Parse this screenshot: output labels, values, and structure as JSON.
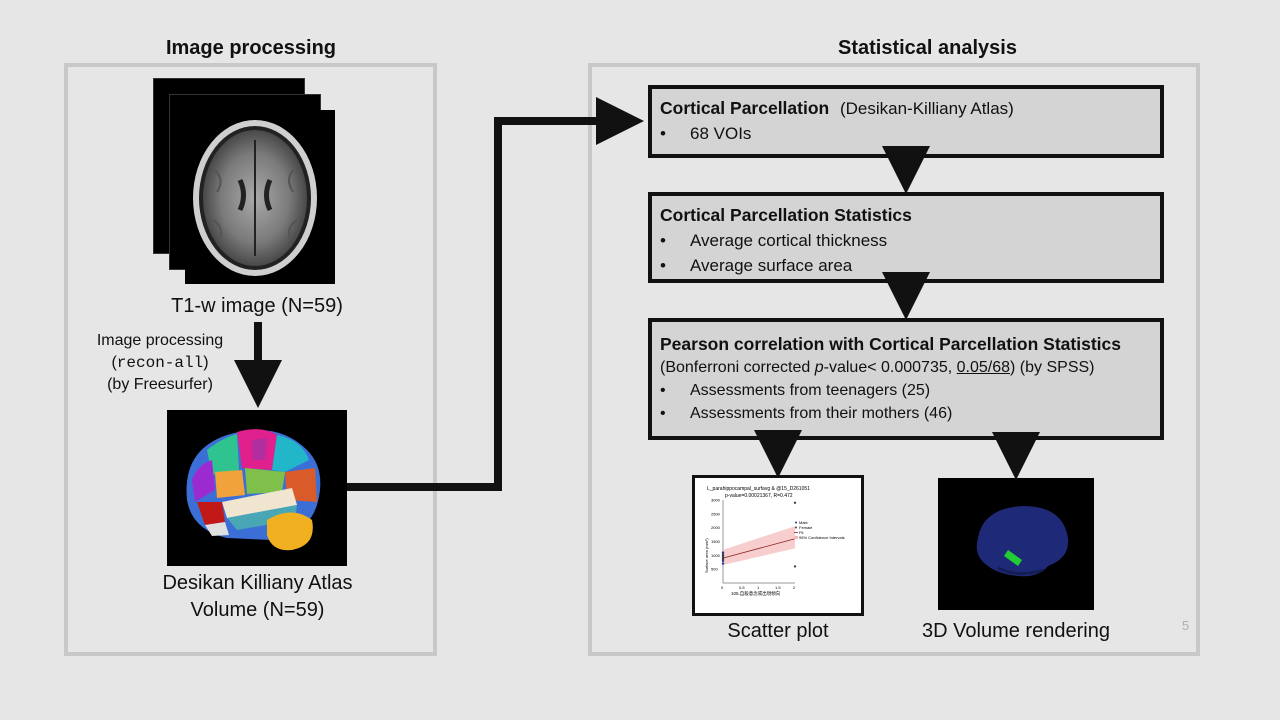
{
  "left_panel": {
    "title": "Image processing",
    "t1_caption": "T1-w image (N=59)",
    "step_line1": "Image processing",
    "step_cmd": "recon-all",
    "step_line3": "(by Freesurfer)",
    "atlas_caption_line1": "Desikan Killiany Atlas",
    "atlas_caption_line2": "Volume (N=59)"
  },
  "right_panel": {
    "title": "Statistical analysis",
    "box1": {
      "head": "Cortical Parcellation",
      "head_suffix": "(Desikan-Killiany Atlas)",
      "items": [
        "68 VOIs"
      ]
    },
    "box2": {
      "head": "Cortical Parcellation Statistics",
      "items": [
        "Average cortical thickness",
        "Average surface area"
      ]
    },
    "box3": {
      "head": "Pearson correlation with Cortical Parcellation Statistics",
      "sub_prefix": "(Bonferroni corrected ",
      "sub_p": "p",
      "sub_mid": "-value< 0.000735, ",
      "sub_frac": "0.05/68",
      "sub_suffix": ") (by SPSS)",
      "items": [
        "Assessments from teenagers (25)",
        "Assessments from their mothers (46)"
      ]
    },
    "scatter_caption": "Scatter plot",
    "render_caption": "3D Volume rendering"
  },
  "page_number": "5",
  "scatter_plot": {
    "title": "L_parahippocampal_surfavg & @15_D261051",
    "subtitle": "p-value=0.00021367, R=0.472",
    "ylabel": "Surface area (mm²)",
    "xlabel": "105.自殺意念或出現傾向",
    "legend": [
      "Male",
      "Female",
      "Fit",
      "95% Confidence Intervals"
    ]
  },
  "chart_data": {
    "type": "scatter",
    "title": "L_parahippocampal_surfavg & @15_D261051",
    "subtitle": "p-value=0.00021367, R=0.472",
    "xlabel": "105.自殺意念或出現傾向",
    "ylabel": "Surface area (mm²)",
    "x_ticks": [
      0,
      0.5,
      1,
      1.5,
      2
    ],
    "y_ticks": [
      500,
      1000,
      1500,
      2000,
      2500,
      3000
    ],
    "xlim": [
      0,
      2
    ],
    "ylim": [
      0,
      3000
    ],
    "series": [
      {
        "name": "Male",
        "x": [
          0,
          0,
          0,
          0,
          0
        ],
        "y": [
          700,
          800,
          900,
          1000,
          1100
        ]
      },
      {
        "name": "Female",
        "x": [
          0,
          0,
          0,
          2,
          2
        ],
        "y": [
          850,
          950,
          1050,
          600,
          2900
        ]
      }
    ],
    "fit": {
      "name": "Fit",
      "x": [
        0,
        2
      ],
      "y": [
        900,
        1600
      ]
    },
    "colors": {
      "fit": "#8b2323",
      "ci": "#f4b8b8",
      "male": "#1f3a93",
      "female": "#444444"
    }
  }
}
